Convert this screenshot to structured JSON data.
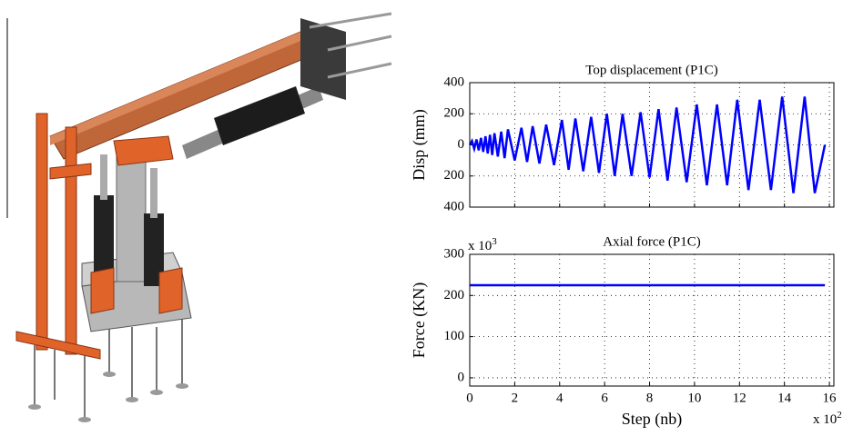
{
  "chart_data": [
    {
      "type": "line",
      "title": "Top displacement (P1C)",
      "ylabel": "Disp (mm)",
      "x": [
        0,
        0.1,
        0.2,
        0.3,
        0.4,
        0.5,
        0.6,
        0.7,
        0.8,
        0.9,
        1.0,
        1.1,
        1.25,
        1.4,
        1.55,
        1.7,
        2.0,
        2.3,
        2.55,
        2.8,
        3.1,
        3.4,
        3.75,
        4.1,
        4.4,
        4.7,
        5.05,
        5.4,
        5.75,
        6.1,
        6.45,
        6.8,
        7.2,
        7.6,
        8.0,
        8.4,
        8.8,
        9.2,
        9.65,
        10.1,
        10.55,
        11.0,
        11.45,
        11.9,
        12.4,
        12.9,
        13.4,
        13.9,
        14.4,
        14.9,
        15.35,
        15.8
      ],
      "values": [
        0,
        25,
        -25,
        35,
        -35,
        45,
        -45,
        55,
        -55,
        65,
        -65,
        75,
        -75,
        85,
        -85,
        100,
        -100,
        110,
        -110,
        120,
        -120,
        130,
        -130,
        160,
        -160,
        170,
        -170,
        180,
        -180,
        200,
        -200,
        200,
        -200,
        210,
        -210,
        230,
        -230,
        240,
        -240,
        260,
        -260,
        260,
        -260,
        290,
        -290,
        290,
        -290,
        310,
        -310,
        310,
        -310,
        0
      ],
      "color": "#0000ff",
      "xlim": [
        0,
        16.2
      ],
      "ylim": [
        -400,
        400
      ],
      "xticks": [
        0,
        2,
        4,
        6,
        8,
        10,
        12,
        14,
        16
      ],
      "xtick_labels": false,
      "yticks": [
        400,
        200,
        0,
        {
          "value": -200,
          "label": "200"
        },
        {
          "value": -400,
          "label": "400"
        }
      ],
      "grid": true
    },
    {
      "type": "line",
      "title": "Axial force (P1C)",
      "ylabel": "Force (KN)",
      "xlabel": "Step (nb)",
      "x": [
        0,
        15.8
      ],
      "values": [
        225,
        225
      ],
      "color": "#0000ff",
      "xlim": [
        0,
        16.2
      ],
      "ylim": [
        -20,
        300
      ],
      "xticks": [
        0,
        2,
        4,
        6,
        8,
        10,
        12,
        14,
        16
      ],
      "xtick_labels": true,
      "yticks": [
        0,
        100,
        200,
        300
      ],
      "x_multiplier": {
        "text": "x 10",
        "exponent": "2"
      },
      "y_multiplier": {
        "text": "x 10",
        "exponent": "3"
      },
      "grid": true
    }
  ]
}
